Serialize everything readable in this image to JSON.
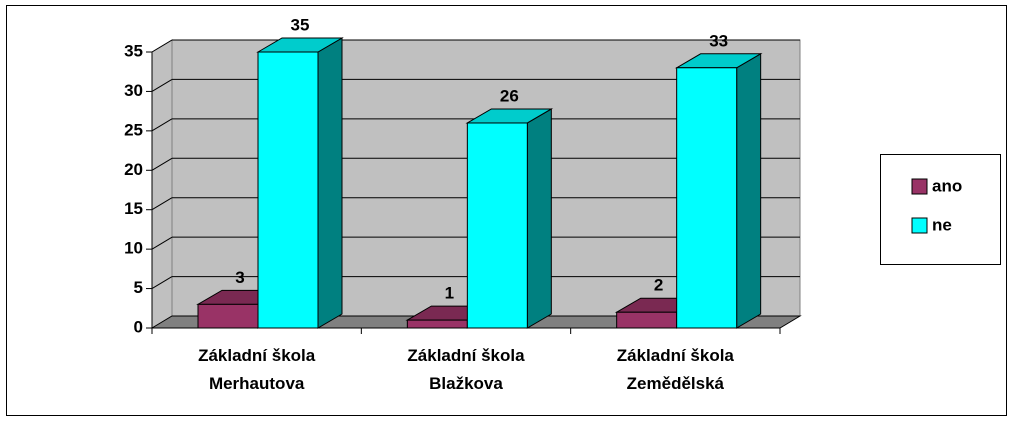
{
  "chart_data": {
    "type": "bar3d",
    "categories": [
      "Základní škola Merhautova",
      "Základní škola Blažkova",
      "Základní škola Zemědělská"
    ],
    "series": [
      {
        "name": "ano",
        "color": "#993366",
        "values": [
          3,
          1,
          2
        ]
      },
      {
        "name": "ne",
        "color": "#00ffff",
        "values": [
          35,
          26,
          33
        ]
      }
    ],
    "ylim": [
      0,
      35
    ],
    "yticks": [
      0,
      5,
      10,
      15,
      20,
      25,
      30,
      35
    ],
    "grid": true,
    "legend": "right"
  }
}
